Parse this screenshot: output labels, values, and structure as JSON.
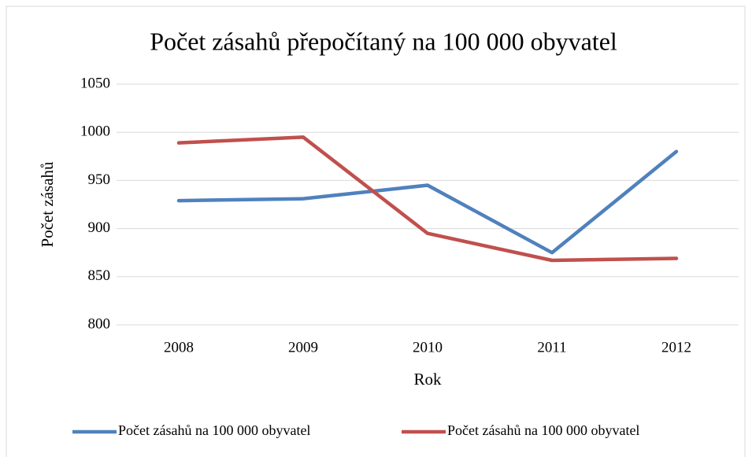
{
  "chart_data": {
    "type": "line",
    "title": "Počet zásahů přepočítaný na 100 000 obyvatel",
    "x_label": "Rok",
    "y_label": "Počet zásahů",
    "categories": [
      "2008",
      "2009",
      "2010",
      "2011",
      "2012"
    ],
    "series": [
      {
        "name": "Počet zásahů na 100 000 obyvatel",
        "color": "#4f81bd",
        "values": [
          929,
          931,
          945,
          875,
          980
        ]
      },
      {
        "name": "Počet zásahů na 100 000 obyvatel",
        "color": "#c0504d",
        "values": [
          989,
          995,
          895,
          867,
          869
        ]
      }
    ],
    "ylim": [
      800,
      1050
    ],
    "yticks": [
      800,
      850,
      900,
      950,
      1000,
      1050
    ],
    "grid": true,
    "legend": "bottom"
  }
}
